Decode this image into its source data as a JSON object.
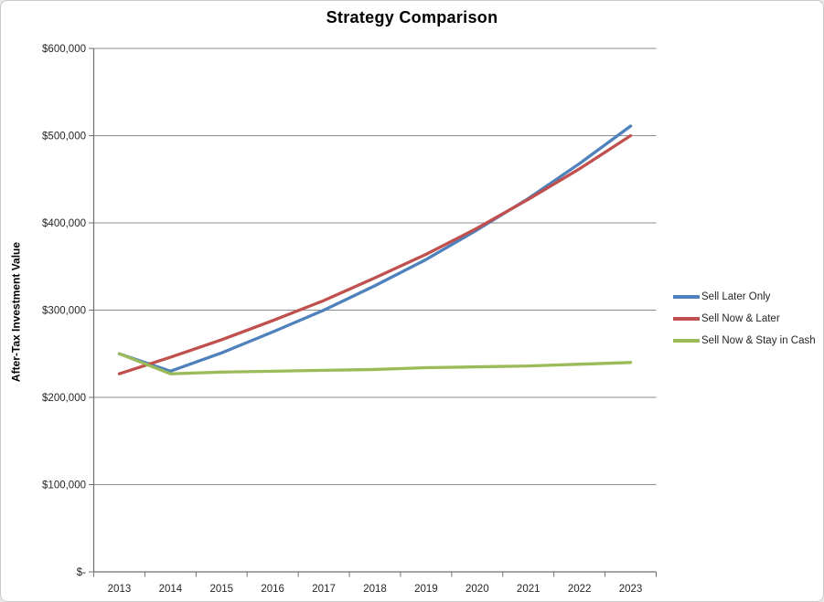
{
  "window": {
    "background": "#ffffff",
    "border_color": "#c9c9c9"
  },
  "chart_data": {
    "type": "line",
    "title": "Strategy Comparison",
    "ylabel": "After-Tax Investment Value",
    "xlabel": "",
    "categories": [
      "2013",
      "2014",
      "2015",
      "2016",
      "2017",
      "2018",
      "2019",
      "2020",
      "2021",
      "2022",
      "2023"
    ],
    "series": [
      {
        "name": "Sell Later Only",
        "color": "#4F81BD",
        "values": [
          250000,
          230000,
          251000,
          275000,
          300000,
          328000,
          358000,
          392000,
          428000,
          468000,
          511000
        ]
      },
      {
        "name": "Sell Now & Later",
        "color": "#C0504D",
        "values": [
          227000,
          246000,
          266000,
          288000,
          311000,
          337000,
          364000,
          394000,
          427000,
          462000,
          500000
        ]
      },
      {
        "name": "Sell Now & Stay in Cash",
        "color": "#9BBB59",
        "values": [
          250000,
          227000,
          229000,
          230000,
          231000,
          232000,
          234000,
          235000,
          236000,
          238000,
          240000
        ]
      }
    ],
    "ylim": [
      0,
      600000
    ],
    "yticks": [
      0,
      100000,
      200000,
      300000,
      400000,
      500000,
      600000
    ],
    "ytick_labels": [
      "$-",
      "$100,000",
      "$200,000",
      "$300,000",
      "$400,000",
      "$500,000",
      "$600,000"
    ],
    "grid": true,
    "legend_position": "right",
    "axis_color": "#6f6f6f",
    "gridline_color": "#8c8c8c",
    "tick_label_color": "#262626"
  }
}
